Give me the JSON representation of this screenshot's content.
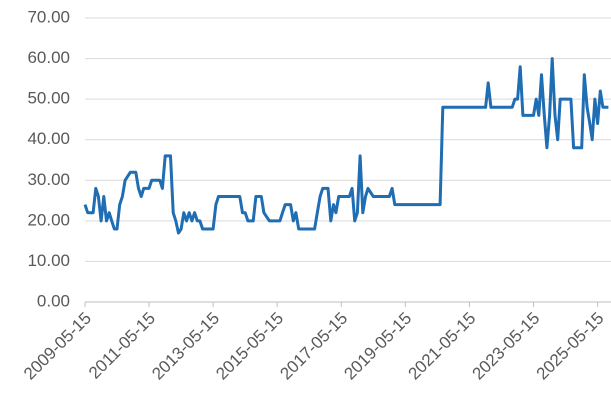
{
  "chart_data": {
    "type": "line",
    "x": [
      "2009-05-15",
      "2009-06-15",
      "2009-08-15",
      "2009-09-15",
      "2009-10-15",
      "2009-11-15",
      "2009-12-15",
      "2010-01-15",
      "2010-02-15",
      "2010-03-15",
      "2010-04-15",
      "2010-05-15",
      "2010-06-15",
      "2010-07-15",
      "2010-08-15",
      "2010-10-15",
      "2010-12-15",
      "2011-01-15",
      "2011-02-15",
      "2011-03-15",
      "2011-05-15",
      "2011-06-15",
      "2011-09-15",
      "2011-10-15",
      "2011-11-15",
      "2012-01-15",
      "2012-02-15",
      "2012-03-15",
      "2012-04-15",
      "2012-05-15",
      "2012-06-15",
      "2012-07-15",
      "2012-08-15",
      "2012-09-15",
      "2012-10-15",
      "2012-11-15",
      "2012-12-15",
      "2013-01-15",
      "2013-05-15",
      "2013-06-15",
      "2013-07-15",
      "2014-03-15",
      "2014-04-15",
      "2014-05-15",
      "2014-06-15",
      "2014-08-15",
      "2014-09-15",
      "2014-11-15",
      "2014-12-15",
      "2015-02-15",
      "2015-06-15",
      "2015-07-15",
      "2015-08-15",
      "2015-10-15",
      "2015-11-15",
      "2015-12-15",
      "2016-01-15",
      "2016-07-15",
      "2016-08-15",
      "2016-09-15",
      "2016-10-15",
      "2016-12-15",
      "2017-01-15",
      "2017-02-15",
      "2017-03-15",
      "2017-04-15",
      "2017-08-15",
      "2017-09-15",
      "2017-10-15",
      "2017-11-15",
      "2017-12-15",
      "2018-01-15",
      "2018-02-15",
      "2018-03-15",
      "2018-05-15",
      "2018-11-15",
      "2018-12-15",
      "2019-01-15",
      "2020-06-15",
      "2020-07-15",
      "2021-11-15",
      "2021-12-15",
      "2022-01-15",
      "2022-09-15",
      "2022-10-15",
      "2022-11-15",
      "2022-12-15",
      "2023-01-15",
      "2023-05-15",
      "2023-06-15",
      "2023-07-15",
      "2023-08-15",
      "2023-09-15",
      "2023-10-15",
      "2023-11-15",
      "2023-12-15",
      "2024-01-15",
      "2024-02-15",
      "2024-03-15",
      "2024-07-15",
      "2024-08-15",
      "2024-11-15",
      "2024-12-15",
      "2025-01-15",
      "2025-02-15",
      "2025-03-15",
      "2025-04-15",
      "2025-05-15",
      "2025-06-15",
      "2025-07-15",
      "2025-09-15"
    ],
    "values": [
      24,
      22,
      22,
      28,
      26,
      20,
      26,
      20,
      22,
      20,
      18,
      18,
      24,
      26,
      30,
      32,
      32,
      28,
      26,
      28,
      28,
      30,
      30,
      28,
      36,
      36,
      22,
      20,
      17,
      18,
      22,
      20,
      22,
      20,
      22,
      20,
      20,
      18,
      18,
      24,
      26,
      26,
      22,
      22,
      20,
      20,
      26,
      26,
      22,
      20,
      20,
      22,
      24,
      24,
      20,
      22,
      18,
      18,
      22,
      26,
      28,
      28,
      20,
      24,
      22,
      26,
      26,
      28,
      20,
      22,
      36,
      22,
      26,
      28,
      26,
      26,
      28,
      24,
      24,
      48,
      48,
      54,
      48,
      48,
      50,
      50,
      58,
      46,
      46,
      50,
      46,
      56,
      46,
      38,
      46,
      60,
      46,
      40,
      50,
      50,
      38,
      38,
      56,
      48,
      44,
      40,
      50,
      44,
      52,
      48,
      48
    ],
    "color": "#1f6db3",
    "xlim": [
      "2009-05-15",
      "2025-10-15"
    ],
    "xticks": [
      "2009-05-15",
      "2011-05-15",
      "2013-05-15",
      "2015-05-15",
      "2017-05-15",
      "2019-05-15",
      "2021-05-15",
      "2023-05-15",
      "2025-05-15"
    ],
    "ylim": [
      0,
      70
    ],
    "yticks": [
      {
        "value": 0,
        "label": "0.00"
      },
      {
        "value": 10,
        "label": "10.00"
      },
      {
        "value": 20,
        "label": "20.00"
      },
      {
        "value": 30,
        "label": "30.00"
      },
      {
        "value": 40,
        "label": "40.00"
      },
      {
        "value": 50,
        "label": "50.00"
      },
      {
        "value": 60,
        "label": "60.00"
      },
      {
        "value": 70,
        "label": "70.00"
      }
    ],
    "grid": true
  }
}
